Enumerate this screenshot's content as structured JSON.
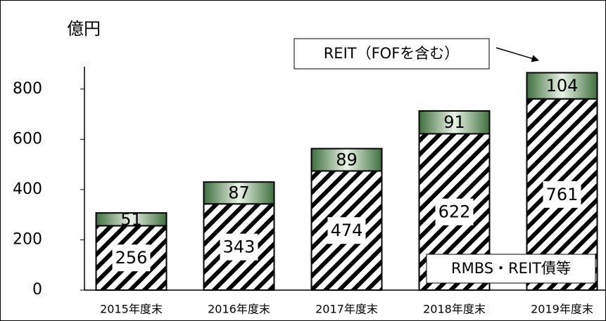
{
  "chart_data": {
    "type": "stacked_bar",
    "unit_label": "億円",
    "categories": [
      "2015年度末",
      "2016年度末",
      "2017年度末",
      "2018年度末",
      "2019年度末"
    ],
    "series": [
      {
        "name": "RMBS・REIT債等",
        "color": "#000000",
        "values": [
          256,
          343,
          474,
          622,
          761
        ]
      },
      {
        "name": "REIT（FOFを含む）",
        "color": "#3f6f3f",
        "values": [
          51,
          87,
          89,
          91,
          104
        ]
      }
    ],
    "ylim": [
      0,
      900
    ],
    "yticks": [
      0,
      200,
      400,
      600,
      800
    ]
  }
}
